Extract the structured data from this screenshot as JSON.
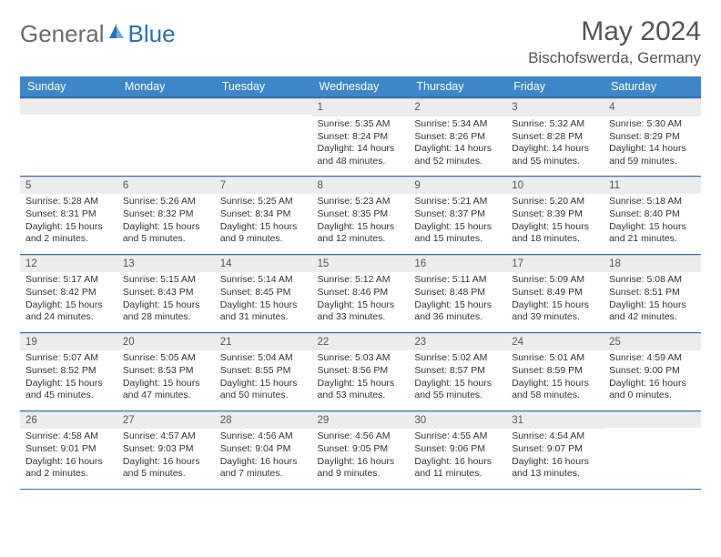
{
  "brand": {
    "part1": "General",
    "part2": "Blue"
  },
  "title": "May 2024",
  "location": "Bischofswerda, Germany",
  "colors": {
    "header_bg": "#3d87c9",
    "header_border": "#2a72b5",
    "daynum_bg": "#ececec",
    "text": "#333333",
    "muted": "#6b6b6b"
  },
  "typography": {
    "title_fontsize": 30,
    "location_fontsize": 17,
    "weekday_fontsize": 12.5,
    "cell_fontsize": 10.5
  },
  "weekdays": [
    "Sunday",
    "Monday",
    "Tuesday",
    "Wednesday",
    "Thursday",
    "Friday",
    "Saturday"
  ],
  "weeks": [
    [
      {
        "day": "",
        "sunrise": "",
        "sunset": "",
        "daylight": ""
      },
      {
        "day": "",
        "sunrise": "",
        "sunset": "",
        "daylight": ""
      },
      {
        "day": "",
        "sunrise": "",
        "sunset": "",
        "daylight": ""
      },
      {
        "day": "1",
        "sunrise": "Sunrise: 5:35 AM",
        "sunset": "Sunset: 8:24 PM",
        "daylight": "Daylight: 14 hours and 48 minutes."
      },
      {
        "day": "2",
        "sunrise": "Sunrise: 5:34 AM",
        "sunset": "Sunset: 8:26 PM",
        "daylight": "Daylight: 14 hours and 52 minutes."
      },
      {
        "day": "3",
        "sunrise": "Sunrise: 5:32 AM",
        "sunset": "Sunset: 8:28 PM",
        "daylight": "Daylight: 14 hours and 55 minutes."
      },
      {
        "day": "4",
        "sunrise": "Sunrise: 5:30 AM",
        "sunset": "Sunset: 8:29 PM",
        "daylight": "Daylight: 14 hours and 59 minutes."
      }
    ],
    [
      {
        "day": "5",
        "sunrise": "Sunrise: 5:28 AM",
        "sunset": "Sunset: 8:31 PM",
        "daylight": "Daylight: 15 hours and 2 minutes."
      },
      {
        "day": "6",
        "sunrise": "Sunrise: 5:26 AM",
        "sunset": "Sunset: 8:32 PM",
        "daylight": "Daylight: 15 hours and 5 minutes."
      },
      {
        "day": "7",
        "sunrise": "Sunrise: 5:25 AM",
        "sunset": "Sunset: 8:34 PM",
        "daylight": "Daylight: 15 hours and 9 minutes."
      },
      {
        "day": "8",
        "sunrise": "Sunrise: 5:23 AM",
        "sunset": "Sunset: 8:35 PM",
        "daylight": "Daylight: 15 hours and 12 minutes."
      },
      {
        "day": "9",
        "sunrise": "Sunrise: 5:21 AM",
        "sunset": "Sunset: 8:37 PM",
        "daylight": "Daylight: 15 hours and 15 minutes."
      },
      {
        "day": "10",
        "sunrise": "Sunrise: 5:20 AM",
        "sunset": "Sunset: 8:39 PM",
        "daylight": "Daylight: 15 hours and 18 minutes."
      },
      {
        "day": "11",
        "sunrise": "Sunrise: 5:18 AM",
        "sunset": "Sunset: 8:40 PM",
        "daylight": "Daylight: 15 hours and 21 minutes."
      }
    ],
    [
      {
        "day": "12",
        "sunrise": "Sunrise: 5:17 AM",
        "sunset": "Sunset: 8:42 PM",
        "daylight": "Daylight: 15 hours and 24 minutes."
      },
      {
        "day": "13",
        "sunrise": "Sunrise: 5:15 AM",
        "sunset": "Sunset: 8:43 PM",
        "daylight": "Daylight: 15 hours and 28 minutes."
      },
      {
        "day": "14",
        "sunrise": "Sunrise: 5:14 AM",
        "sunset": "Sunset: 8:45 PM",
        "daylight": "Daylight: 15 hours and 31 minutes."
      },
      {
        "day": "15",
        "sunrise": "Sunrise: 5:12 AM",
        "sunset": "Sunset: 8:46 PM",
        "daylight": "Daylight: 15 hours and 33 minutes."
      },
      {
        "day": "16",
        "sunrise": "Sunrise: 5:11 AM",
        "sunset": "Sunset: 8:48 PM",
        "daylight": "Daylight: 15 hours and 36 minutes."
      },
      {
        "day": "17",
        "sunrise": "Sunrise: 5:09 AM",
        "sunset": "Sunset: 8:49 PM",
        "daylight": "Daylight: 15 hours and 39 minutes."
      },
      {
        "day": "18",
        "sunrise": "Sunrise: 5:08 AM",
        "sunset": "Sunset: 8:51 PM",
        "daylight": "Daylight: 15 hours and 42 minutes."
      }
    ],
    [
      {
        "day": "19",
        "sunrise": "Sunrise: 5:07 AM",
        "sunset": "Sunset: 8:52 PM",
        "daylight": "Daylight: 15 hours and 45 minutes."
      },
      {
        "day": "20",
        "sunrise": "Sunrise: 5:05 AM",
        "sunset": "Sunset: 8:53 PM",
        "daylight": "Daylight: 15 hours and 47 minutes."
      },
      {
        "day": "21",
        "sunrise": "Sunrise: 5:04 AM",
        "sunset": "Sunset: 8:55 PM",
        "daylight": "Daylight: 15 hours and 50 minutes."
      },
      {
        "day": "22",
        "sunrise": "Sunrise: 5:03 AM",
        "sunset": "Sunset: 8:56 PM",
        "daylight": "Daylight: 15 hours and 53 minutes."
      },
      {
        "day": "23",
        "sunrise": "Sunrise: 5:02 AM",
        "sunset": "Sunset: 8:57 PM",
        "daylight": "Daylight: 15 hours and 55 minutes."
      },
      {
        "day": "24",
        "sunrise": "Sunrise: 5:01 AM",
        "sunset": "Sunset: 8:59 PM",
        "daylight": "Daylight: 15 hours and 58 minutes."
      },
      {
        "day": "25",
        "sunrise": "Sunrise: 4:59 AM",
        "sunset": "Sunset: 9:00 PM",
        "daylight": "Daylight: 16 hours and 0 minutes."
      }
    ],
    [
      {
        "day": "26",
        "sunrise": "Sunrise: 4:58 AM",
        "sunset": "Sunset: 9:01 PM",
        "daylight": "Daylight: 16 hours and 2 minutes."
      },
      {
        "day": "27",
        "sunrise": "Sunrise: 4:57 AM",
        "sunset": "Sunset: 9:03 PM",
        "daylight": "Daylight: 16 hours and 5 minutes."
      },
      {
        "day": "28",
        "sunrise": "Sunrise: 4:56 AM",
        "sunset": "Sunset: 9:04 PM",
        "daylight": "Daylight: 16 hours and 7 minutes."
      },
      {
        "day": "29",
        "sunrise": "Sunrise: 4:56 AM",
        "sunset": "Sunset: 9:05 PM",
        "daylight": "Daylight: 16 hours and 9 minutes."
      },
      {
        "day": "30",
        "sunrise": "Sunrise: 4:55 AM",
        "sunset": "Sunset: 9:06 PM",
        "daylight": "Daylight: 16 hours and 11 minutes."
      },
      {
        "day": "31",
        "sunrise": "Sunrise: 4:54 AM",
        "sunset": "Sunset: 9:07 PM",
        "daylight": "Daylight: 16 hours and 13 minutes."
      },
      {
        "day": "",
        "sunrise": "",
        "sunset": "",
        "daylight": ""
      }
    ]
  ]
}
